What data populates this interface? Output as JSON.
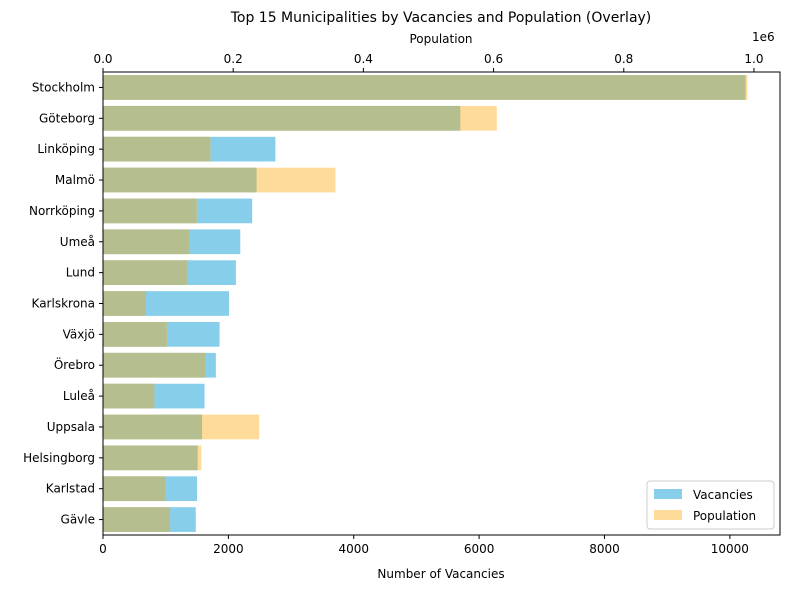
{
  "chart_data": {
    "type": "bar",
    "orientation": "horizontal",
    "title": "Top 15 Municipalities by Vacancies and Population (Overlay)",
    "xlabel": "Number of Vacancies",
    "top_xlabel": "Population",
    "top_offset_label": "1e6",
    "categories": [
      "Stockholm",
      "Göteborg",
      "Linköping",
      "Malmö",
      "Norrköping",
      "Umeå",
      "Lund",
      "Karlskrona",
      "Växjö",
      "Örebro",
      "Luleå",
      "Uppsala",
      "Helsingborg",
      "Karlstad",
      "Gävle"
    ],
    "series": [
      {
        "name": "Vacancies",
        "axis": "bottom",
        "color": "#87ceeb",
        "values": [
          10250,
          5700,
          2750,
          2450,
          2380,
          2190,
          2120,
          2010,
          1860,
          1800,
          1620,
          1580,
          1510,
          1500,
          1480
        ]
      },
      {
        "name": "Population",
        "axis": "top",
        "color": "#ffdb99",
        "values": [
          990000,
          605000,
          165000,
          357000,
          144000,
          133000,
          130000,
          66000,
          98000,
          158000,
          79000,
          240000,
          151000,
          96000,
          103000
        ]
      }
    ],
    "overlap_color": "#b5be8f",
    "xlim": [
      0,
      10800
    ],
    "top_xlim": [
      0,
      1040000
    ],
    "xticks": [
      0,
      2000,
      4000,
      6000,
      8000,
      10000
    ],
    "xtick_labels": [
      "0",
      "2000",
      "4000",
      "6000",
      "8000",
      "10000"
    ],
    "top_xticks": [
      0,
      200000,
      400000,
      600000,
      800000,
      1000000
    ],
    "top_xtick_labels": [
      "0.0",
      "0.2",
      "0.4",
      "0.6",
      "0.8",
      "1.0"
    ],
    "legend": {
      "placement": "lower-right",
      "entries": [
        {
          "label": "Vacancies",
          "color": "#87ceeb"
        },
        {
          "label": "Population",
          "color": "#ffdb99"
        }
      ]
    },
    "grid": false
  }
}
